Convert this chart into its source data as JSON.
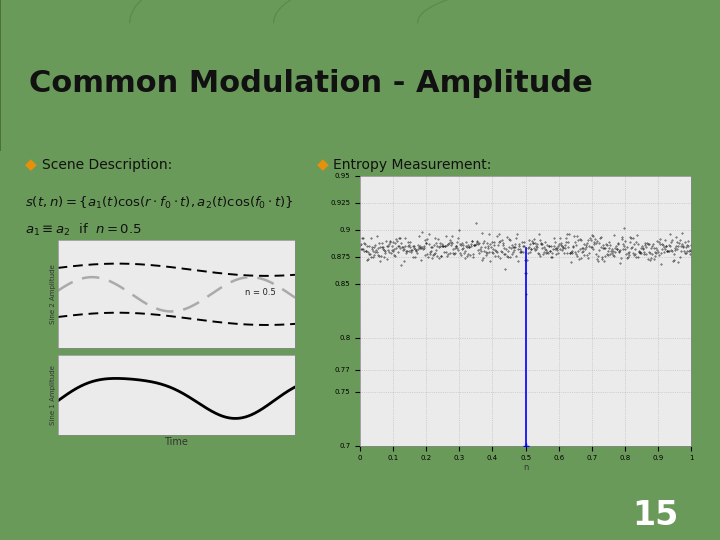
{
  "title": "Common Modulation - Amplitude",
  "bg_header": "#3a6030",
  "bg_slide": "#6a9a5a",
  "bg_title_band": "#2a4a1a",
  "bullet_color": "#e8900a",
  "title_color": "#1a1a1a",
  "bullet1_text": "Scene Description:",
  "bullet2_text": "Entropy Measurement:",
  "formula1": "$s(t,n) = \\{a_1(t)\\cos(r \\cdot f_0 \\cdot t), a_2(t)\\cos(f_0 \\cdot t)\\}$",
  "formula2": "$a_1 \\equiv a_2$  if  $n = 0.5$",
  "annotation": "n = 0.5",
  "number": "15",
  "plot_bg": "#ebebeb",
  "sep_color": "#7ab86a"
}
